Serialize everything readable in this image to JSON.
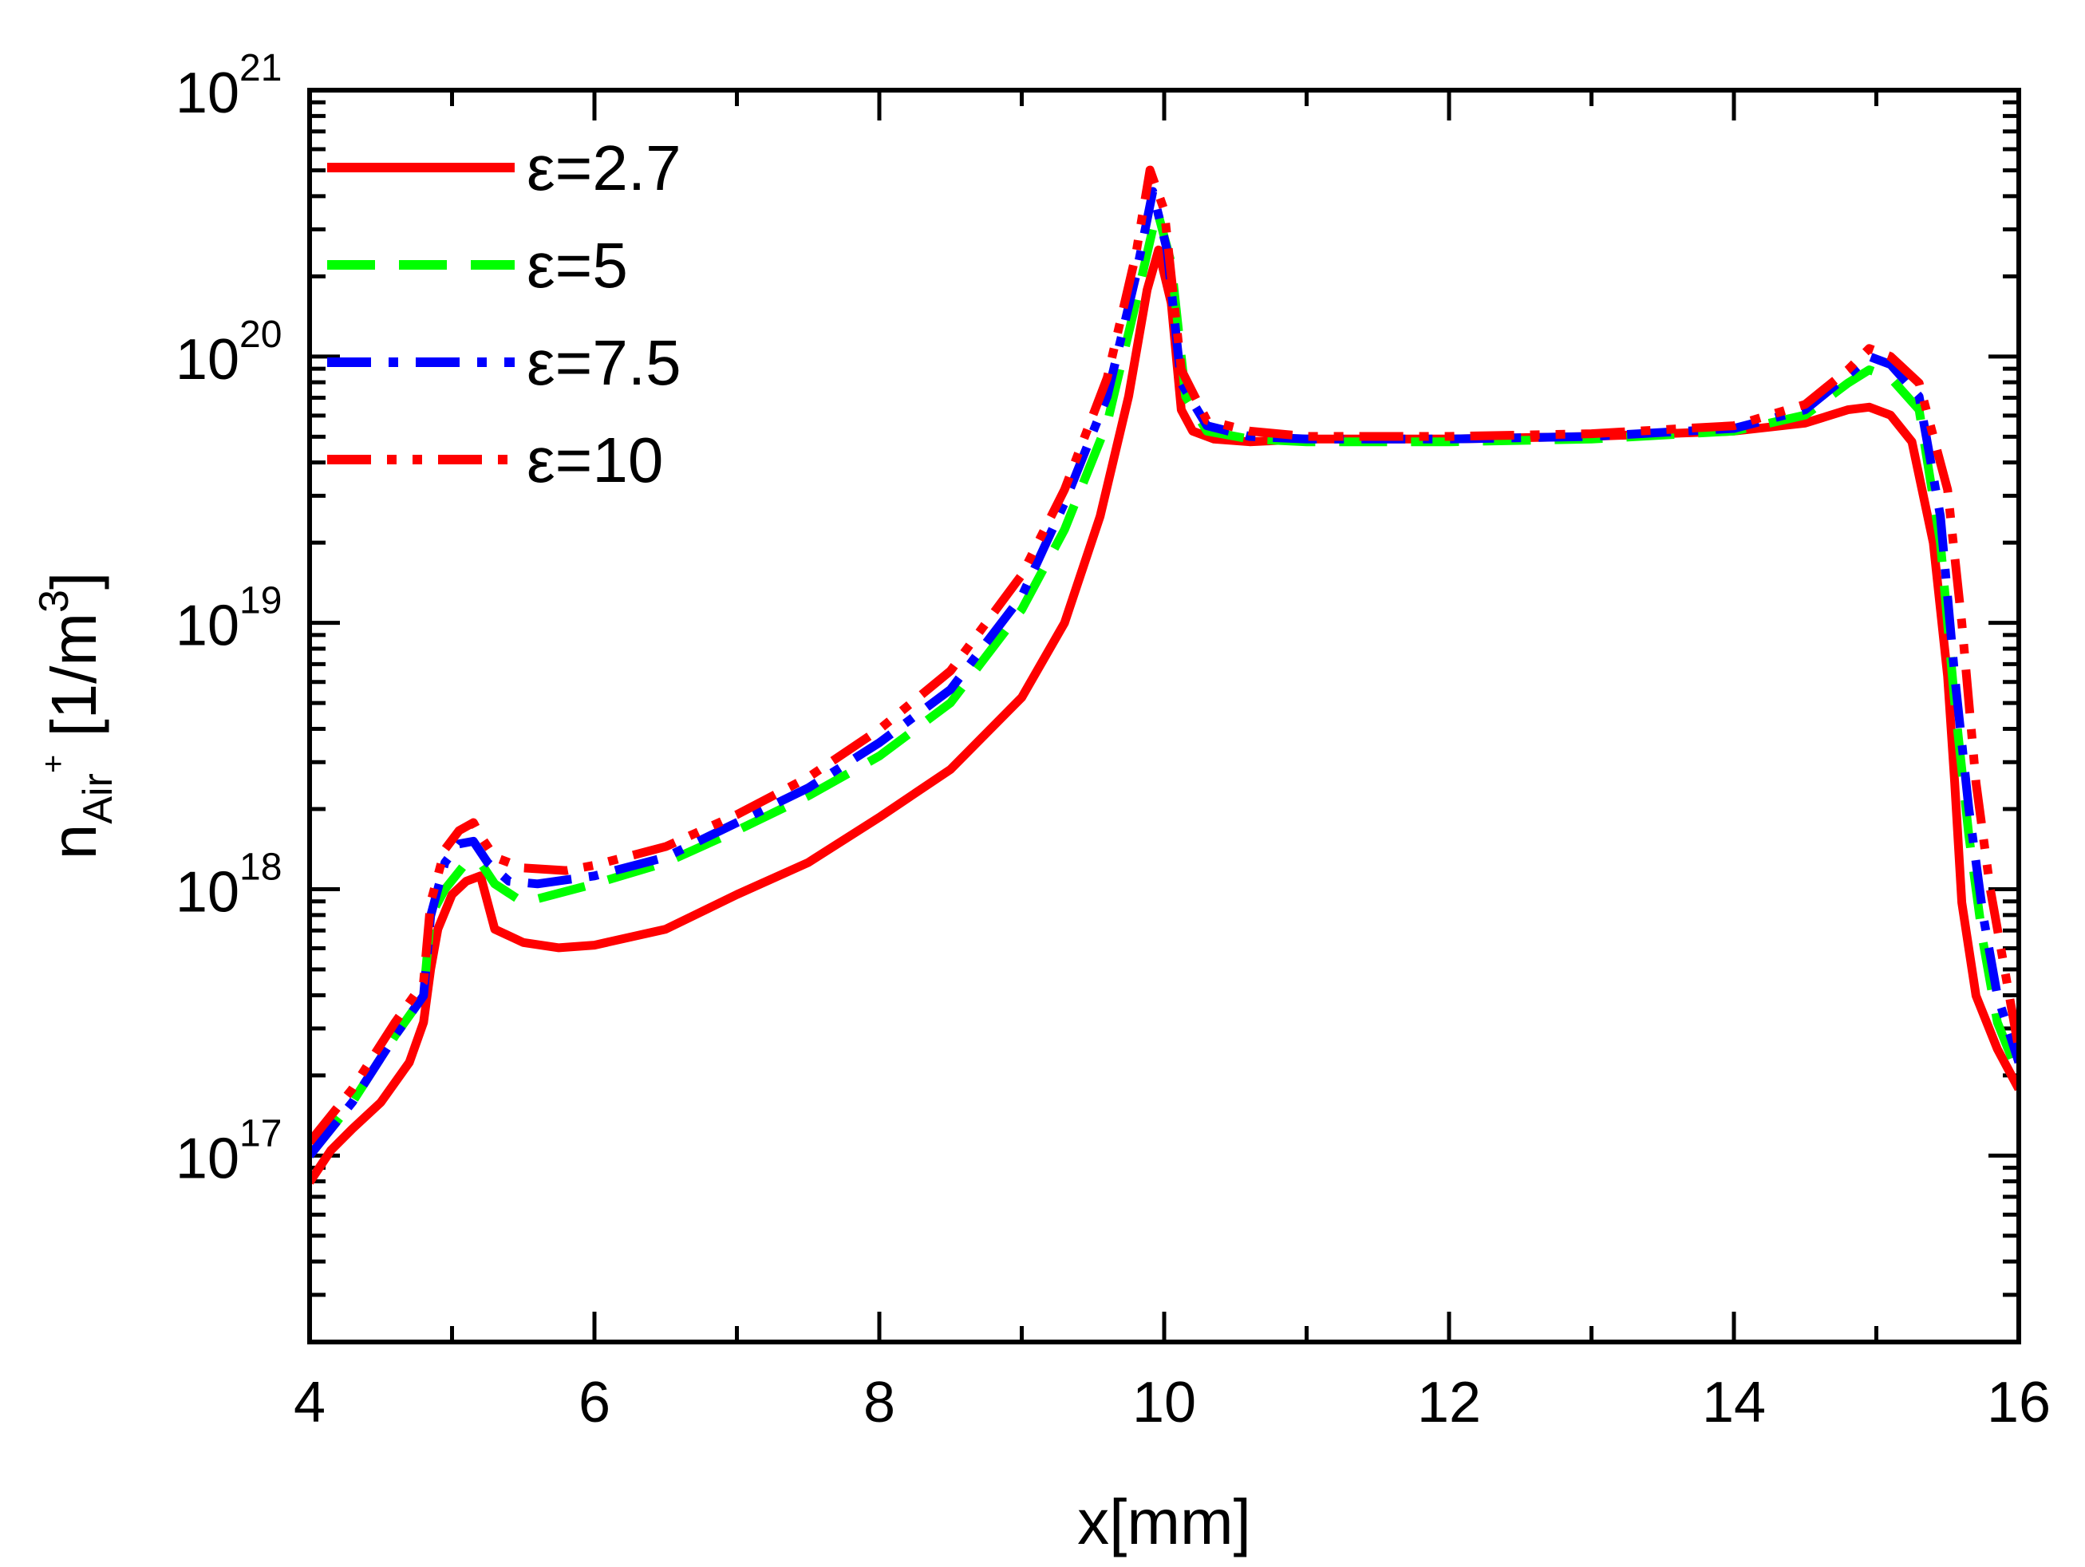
{
  "chart_data": {
    "type": "line",
    "title": "",
    "xlabel": "x[mm]",
    "ylabel": {
      "base": "n",
      "sub": "Air",
      "sup": "+",
      "unit_text": "[1/m",
      "unit_sup": "3",
      "unit_close": "]"
    },
    "xlim": [
      4,
      16
    ],
    "ylim_log10": [
      16.3,
      21
    ],
    "y_scale": "log",
    "x_ticks": [
      4,
      6,
      8,
      10,
      12,
      14,
      16
    ],
    "x_tick_labels": [
      "4",
      "6",
      "8",
      "10",
      "12",
      "14",
      "16"
    ],
    "y_ticks_log10": [
      17,
      18,
      19,
      20,
      21
    ],
    "y_tick_labels": [
      {
        "base": "10",
        "exp": "17"
      },
      {
        "base": "10",
        "exp": "18"
      },
      {
        "base": "10",
        "exp": "19"
      },
      {
        "base": "10",
        "exp": "20"
      },
      {
        "base": "10",
        "exp": "21"
      }
    ],
    "grid": false,
    "legend_position": "top-left",
    "series": [
      {
        "name": "ε=2.7",
        "color": "#ff0000",
        "style": "solid",
        "x": [
          4.0,
          4.15,
          4.3,
          4.5,
          4.7,
          4.8,
          4.85,
          4.9,
          5.0,
          5.1,
          5.2,
          5.3,
          5.5,
          5.75,
          6.0,
          6.5,
          7.0,
          7.5,
          8.0,
          8.5,
          9.0,
          9.3,
          9.55,
          9.75,
          9.88,
          9.96,
          10.05,
          10.12,
          10.2,
          10.35,
          10.6,
          11.0,
          12.0,
          13.0,
          14.0,
          14.5,
          14.8,
          14.95,
          15.1,
          15.25,
          15.4,
          15.5,
          15.55,
          15.6,
          15.7,
          15.85,
          16.0
        ],
        "y_log10": [
          16.9,
          17.02,
          17.1,
          17.2,
          17.35,
          17.5,
          17.7,
          17.85,
          17.98,
          18.03,
          18.05,
          17.85,
          17.8,
          17.78,
          17.79,
          17.85,
          17.98,
          18.1,
          18.27,
          18.45,
          18.72,
          19.0,
          19.4,
          19.85,
          20.25,
          20.4,
          20.2,
          19.8,
          19.72,
          19.69,
          19.68,
          19.69,
          19.69,
          19.7,
          19.72,
          19.75,
          19.8,
          19.81,
          19.78,
          19.68,
          19.3,
          18.8,
          18.4,
          17.95,
          17.6,
          17.4,
          17.25
        ]
      },
      {
        "name": "ε=5",
        "color": "#00ff00",
        "style": "dashed",
        "x": [
          4.0,
          4.3,
          4.6,
          4.8,
          4.85,
          4.95,
          5.1,
          5.2,
          5.3,
          5.5,
          6.0,
          6.5,
          7.0,
          7.5,
          8.0,
          8.5,
          9.0,
          9.3,
          9.6,
          9.8,
          9.95,
          10.05,
          10.15,
          10.3,
          10.6,
          11.0,
          12.0,
          13.0,
          14.0,
          14.5,
          14.8,
          14.95,
          15.1,
          15.3,
          15.45,
          15.55,
          15.65,
          15.75,
          15.85,
          16.0
        ],
        "y_log10": [
          17.0,
          17.2,
          17.45,
          17.6,
          17.9,
          18.0,
          18.1,
          18.1,
          18.02,
          17.95,
          18.02,
          18.1,
          18.22,
          18.35,
          18.5,
          18.7,
          19.05,
          19.35,
          19.75,
          20.2,
          20.55,
          20.35,
          19.85,
          19.72,
          19.69,
          19.68,
          19.68,
          19.69,
          19.72,
          19.78,
          19.9,
          19.95,
          19.92,
          19.8,
          19.3,
          18.7,
          18.2,
          17.8,
          17.5,
          17.3
        ]
      },
      {
        "name": "ε=7.5",
        "color": "#0000ff",
        "style": "dashdot",
        "x": [
          4.0,
          4.3,
          4.6,
          4.8,
          4.85,
          4.95,
          5.05,
          5.15,
          5.25,
          5.4,
          5.6,
          6.0,
          6.5,
          7.0,
          7.5,
          8.0,
          8.5,
          9.0,
          9.3,
          9.6,
          9.8,
          9.92,
          10.02,
          10.12,
          10.3,
          10.6,
          11.0,
          12.0,
          13.0,
          14.0,
          14.5,
          14.8,
          14.95,
          15.1,
          15.3,
          15.45,
          15.55,
          15.65,
          15.75,
          15.85,
          16.0
        ],
        "y_log10": [
          17.0,
          17.2,
          17.45,
          17.6,
          17.9,
          18.1,
          18.17,
          18.18,
          18.1,
          18.03,
          18.02,
          18.05,
          18.12,
          18.25,
          18.38,
          18.55,
          18.75,
          19.1,
          19.45,
          19.85,
          20.3,
          20.62,
          20.4,
          19.9,
          19.74,
          19.7,
          19.69,
          19.69,
          19.7,
          19.73,
          19.8,
          19.93,
          20.0,
          19.97,
          19.85,
          19.4,
          18.8,
          18.3,
          17.9,
          17.6,
          17.35
        ]
      },
      {
        "name": "ε=10",
        "color": "#ff0000",
        "style": "dashdotdot",
        "x": [
          4.0,
          4.3,
          4.6,
          4.8,
          4.85,
          4.95,
          5.05,
          5.15,
          5.2,
          5.3,
          5.5,
          5.8,
          6.0,
          6.5,
          7.0,
          7.5,
          8.0,
          8.5,
          9.0,
          9.3,
          9.6,
          9.8,
          9.9,
          10.0,
          10.12,
          10.3,
          10.6,
          11.0,
          12.0,
          13.0,
          14.0,
          14.5,
          14.8,
          14.95,
          15.1,
          15.3,
          15.5,
          15.6,
          15.7,
          15.8,
          15.9,
          16.0
        ],
        "y_log10": [
          17.05,
          17.25,
          17.5,
          17.65,
          17.95,
          18.15,
          18.22,
          18.25,
          18.2,
          18.12,
          18.08,
          18.07,
          18.09,
          18.16,
          18.28,
          18.42,
          18.6,
          18.82,
          19.18,
          19.5,
          19.92,
          20.38,
          20.7,
          20.55,
          19.95,
          19.76,
          19.72,
          19.7,
          19.7,
          19.71,
          19.74,
          19.82,
          19.95,
          20.03,
          20.0,
          19.9,
          19.5,
          19.0,
          18.4,
          18.0,
          17.7,
          17.4
        ]
      }
    ]
  }
}
